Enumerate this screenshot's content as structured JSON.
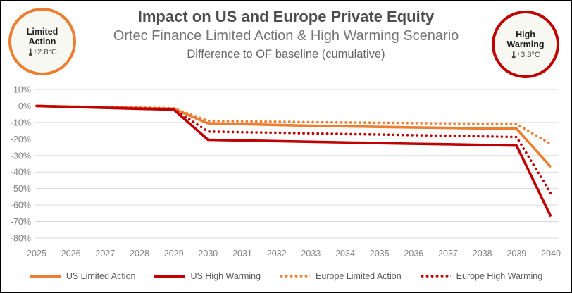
{
  "header": {
    "title": "Impact on US and Europe Private Equity",
    "subtitle1": "Ortec Finance Limited Action & High Warming Scenario",
    "subtitle2": "Difference to OF baseline (cumulative)",
    "badge_left": {
      "line1": "Limited",
      "line2": "Action",
      "temp": "2.8°C",
      "icon": "thermometer-up-icon",
      "border_color": "#ED7D31"
    },
    "badge_right": {
      "line1": "High",
      "line2": "Warming",
      "temp": "3.8°C",
      "icon": "thermometer-up-icon",
      "border_color": "#C00000"
    }
  },
  "chart_data": {
    "type": "line",
    "x": [
      2025,
      2026,
      2027,
      2028,
      2029,
      2030,
      2031,
      2032,
      2033,
      2034,
      2035,
      2036,
      2037,
      2038,
      2039,
      2040
    ],
    "series": [
      {
        "name": "US Limited Action",
        "color": "#ED7D31",
        "style": "solid",
        "values": [
          0,
          -0.4,
          -0.8,
          -1.2,
          -1.7,
          -10.5,
          -11,
          -11.5,
          -12,
          -12.3,
          -12.7,
          -13,
          -13.3,
          -13.6,
          -13.8,
          -37
        ]
      },
      {
        "name": "US High Warming",
        "color": "#C00000",
        "style": "solid",
        "values": [
          0,
          -0.6,
          -1.1,
          -1.7,
          -2.2,
          -20.5,
          -20.9,
          -21.3,
          -21.7,
          -22.1,
          -22.5,
          -22.9,
          -23.2,
          -23.6,
          -24,
          -67
        ]
      },
      {
        "name": "Europe Limited Action",
        "color": "#ED7D31",
        "style": "dotted",
        "values": [
          0,
          -0.3,
          -0.7,
          -1,
          -1.4,
          -9,
          -9.3,
          -9.5,
          -9.8,
          -10,
          -10.2,
          -10.4,
          -10.6,
          -10.8,
          -11,
          -23
        ]
      },
      {
        "name": "Europe High Warming",
        "color": "#C00000",
        "style": "dotted",
        "values": [
          0,
          -0.5,
          -1,
          -1.4,
          -1.9,
          -15.5,
          -15.9,
          -16.2,
          -16.6,
          -17,
          -17.3,
          -17.7,
          -18,
          -18.4,
          -18.8,
          -53
        ]
      }
    ],
    "title": "Difference to OF baseline (cumulative)",
    "xlabel": "",
    "ylabel": "",
    "ylim": [
      -80,
      10
    ],
    "ytick_step": 10,
    "ytick_format": "percent",
    "grid": true,
    "grid_color": "#D9D9D9",
    "axis_label_color": "#808080",
    "legend_position": "bottom"
  }
}
